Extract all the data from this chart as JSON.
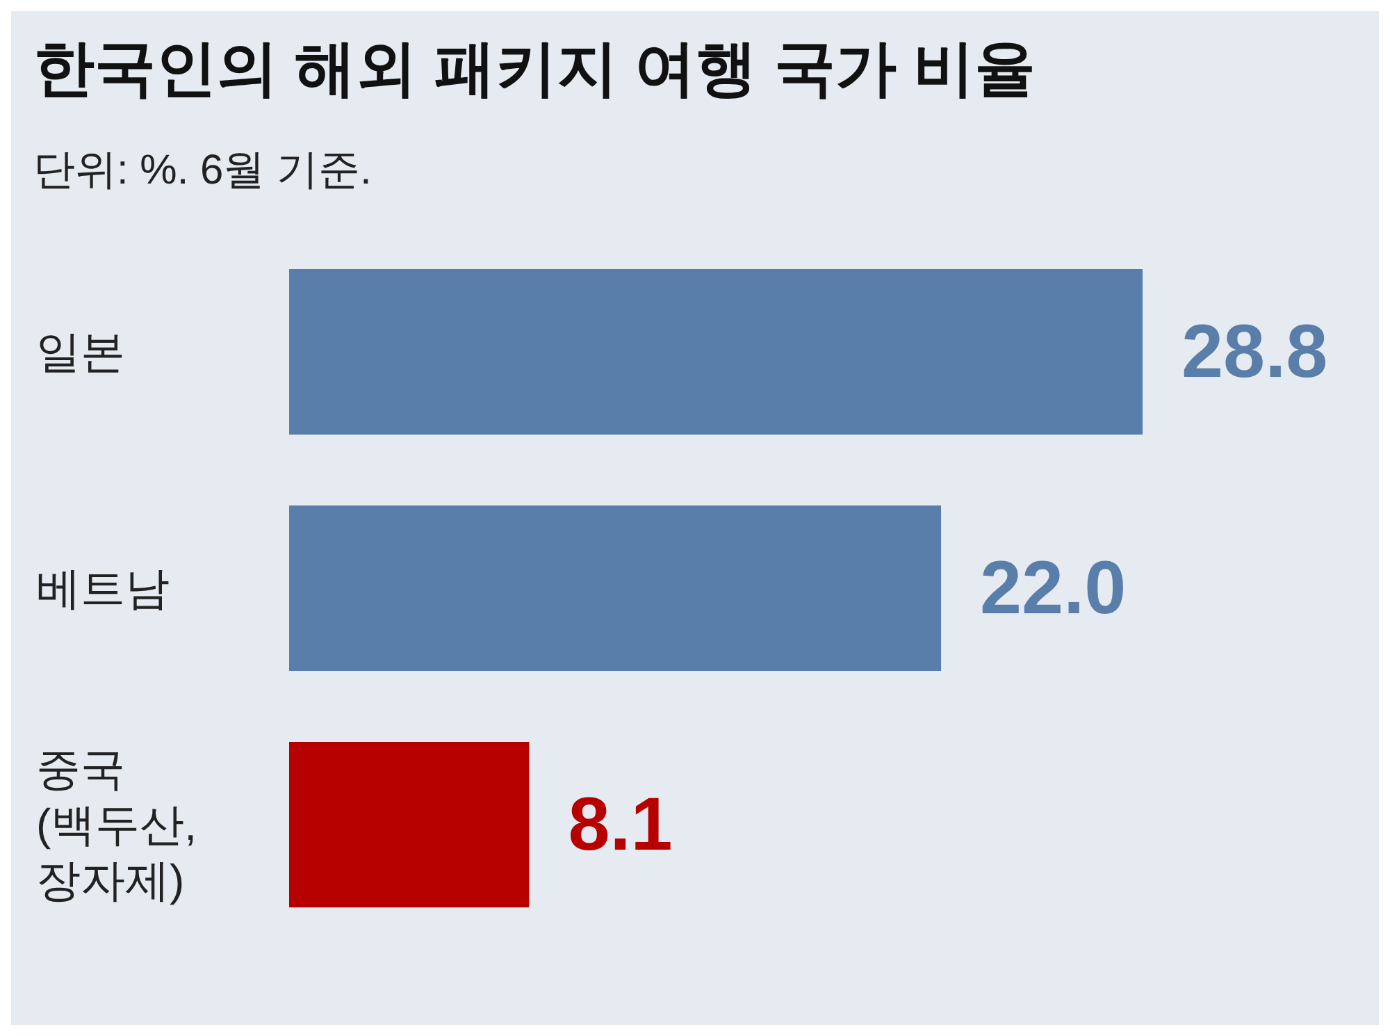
{
  "chart_data": {
    "type": "bar",
    "orientation": "horizontal",
    "title": "한국인의 해외 패키지 여행 국가 비율",
    "subtitle": "단위: %. 6월 기준.",
    "categories": [
      "일본",
      "베트남",
      "중국 (백두산, 장자제)"
    ],
    "values": [
      28.8,
      22.0,
      8.1
    ],
    "colors": [
      "#5a7eaa",
      "#5a7eaa",
      "#b70000"
    ],
    "value_labels": [
      "28.8",
      "22.0",
      "8.1"
    ]
  }
}
